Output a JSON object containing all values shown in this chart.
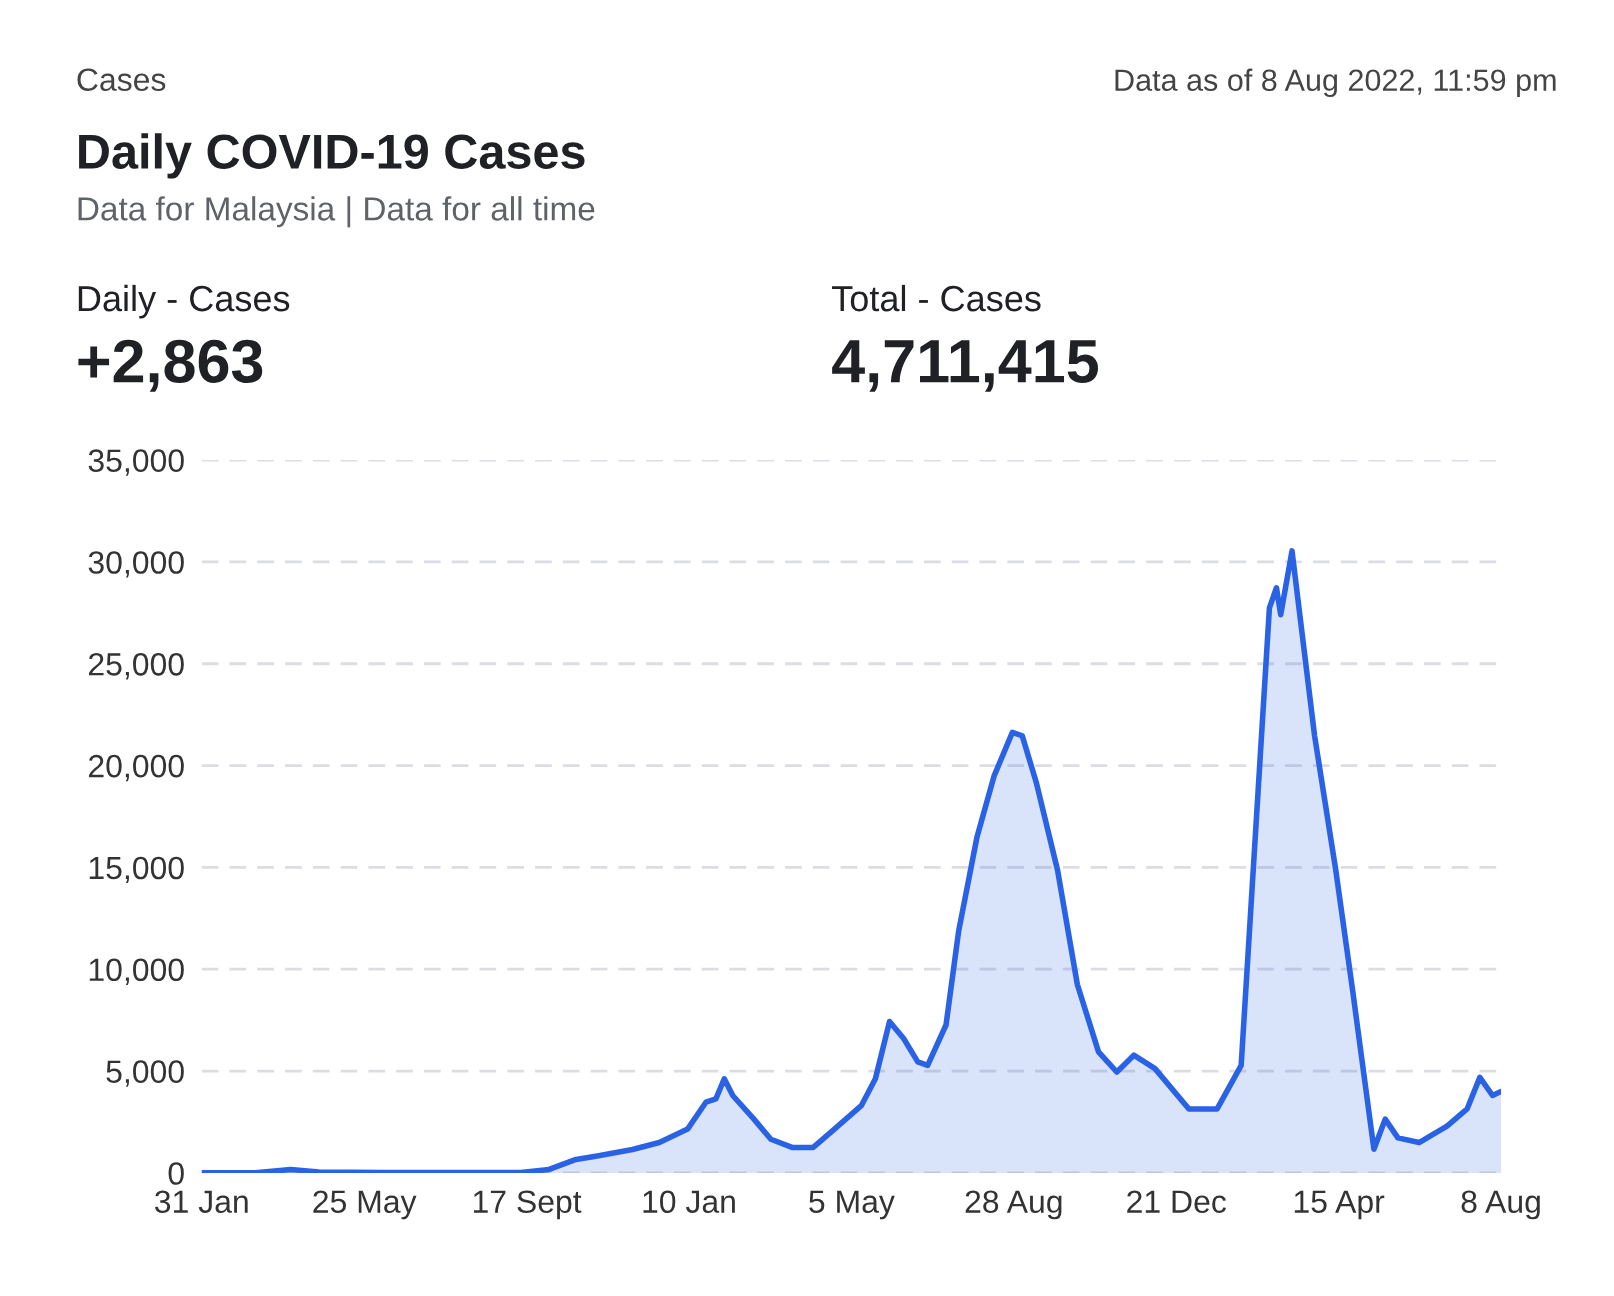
{
  "chart_data": {
    "type": "area",
    "title": "Daily COVID-19 Cases",
    "subtitle": "Data for Malaysia | Data for all time",
    "annotations": [
      "Cases",
      "Data as of 8 Aug 2022, 11:59 pm",
      "Daily - Cases",
      "+2,863",
      "Total - Cases",
      "4,711,415"
    ],
    "x": [
      "2020-01-31",
      "2020-03-09",
      "2020-04-03",
      "2020-04-23",
      "2020-06-06",
      "2020-09-13",
      "2020-10-03",
      "2020-10-22",
      "2020-11-06",
      "2020-12-01",
      "2020-12-20",
      "2021-01-09",
      "2021-01-22",
      "2021-01-29",
      "2021-02-04",
      "2021-02-10",
      "2021-02-25",
      "2021-03-09",
      "2021-03-24",
      "2021-04-08",
      "2021-04-23",
      "2021-05-12",
      "2021-05-22",
      "2021-06-01",
      "2021-06-11",
      "2021-06-21",
      "2021-06-28",
      "2021-07-11",
      "2021-07-20",
      "2021-08-02",
      "2021-08-14",
      "2021-08-27",
      "2021-09-03",
      "2021-09-13",
      "2021-09-28",
      "2021-10-12",
      "2021-10-27",
      "2021-11-09",
      "2021-11-21",
      "2021-12-06",
      "2021-12-30",
      "2022-01-19",
      "2022-02-05",
      "2022-02-15",
      "2022-02-25",
      "2022-03-02",
      "2022-03-05",
      "2022-03-13",
      "2022-03-29",
      "2022-04-13",
      "2022-04-25",
      "2022-05-10",
      "2022-05-18",
      "2022-05-27",
      "2022-06-11",
      "2022-07-01",
      "2022-07-15",
      "2022-07-24",
      "2022-08-02",
      "2022-08-08"
    ],
    "series": [
      {
        "color": "#2a62e6",
        "values": [
          0,
          0,
          170,
          40,
          20,
          20,
          170,
          660,
          830,
          1150,
          1490,
          2150,
          3470,
          3630,
          4620,
          3800,
          2640,
          1650,
          1250,
          1250,
          2150,
          3300,
          4620,
          7430,
          6600,
          5450,
          5280,
          7260,
          11890,
          16510,
          19480,
          21630,
          21460,
          19150,
          14860,
          9250,
          5940,
          4950,
          5780,
          5120,
          3140,
          3140,
          5280,
          16510,
          27740,
          28730,
          27410,
          30540,
          21460,
          14860,
          8920,
          1160,
          2640,
          1720,
          1490,
          2310,
          3140,
          4690,
          3800,
          4000
        ]
      }
    ],
    "xlim": [
      "2020-01-31",
      "2022-08-08"
    ],
    "xticks": [
      {
        "value": "2020-01-31",
        "label": "31 Jan"
      },
      {
        "value": "2020-05-25",
        "label": "25 May"
      },
      {
        "value": "2020-09-17",
        "label": "17 Sept"
      },
      {
        "value": "2021-01-10",
        "label": "10 Jan"
      },
      {
        "value": "2021-05-05",
        "label": "5 May"
      },
      {
        "value": "2021-08-28",
        "label": "28 Aug"
      },
      {
        "value": "2021-12-21",
        "label": "21 Dec"
      },
      {
        "value": "2022-04-15",
        "label": "15 Apr"
      },
      {
        "value": "2022-08-08",
        "label": "8 Aug"
      }
    ],
    "ylim": [
      0,
      35000
    ],
    "yticks": [
      {
        "value": 0,
        "label": "0"
      },
      {
        "value": 5000,
        "label": "5,000"
      },
      {
        "value": 10000,
        "label": "10,000"
      },
      {
        "value": 15000,
        "label": "15,000"
      },
      {
        "value": 20000,
        "label": "20,000"
      },
      {
        "value": 25000,
        "label": "25,000"
      },
      {
        "value": 30000,
        "label": "30,000"
      },
      {
        "value": 35000,
        "label": "35,000"
      }
    ],
    "grid": "y"
  }
}
